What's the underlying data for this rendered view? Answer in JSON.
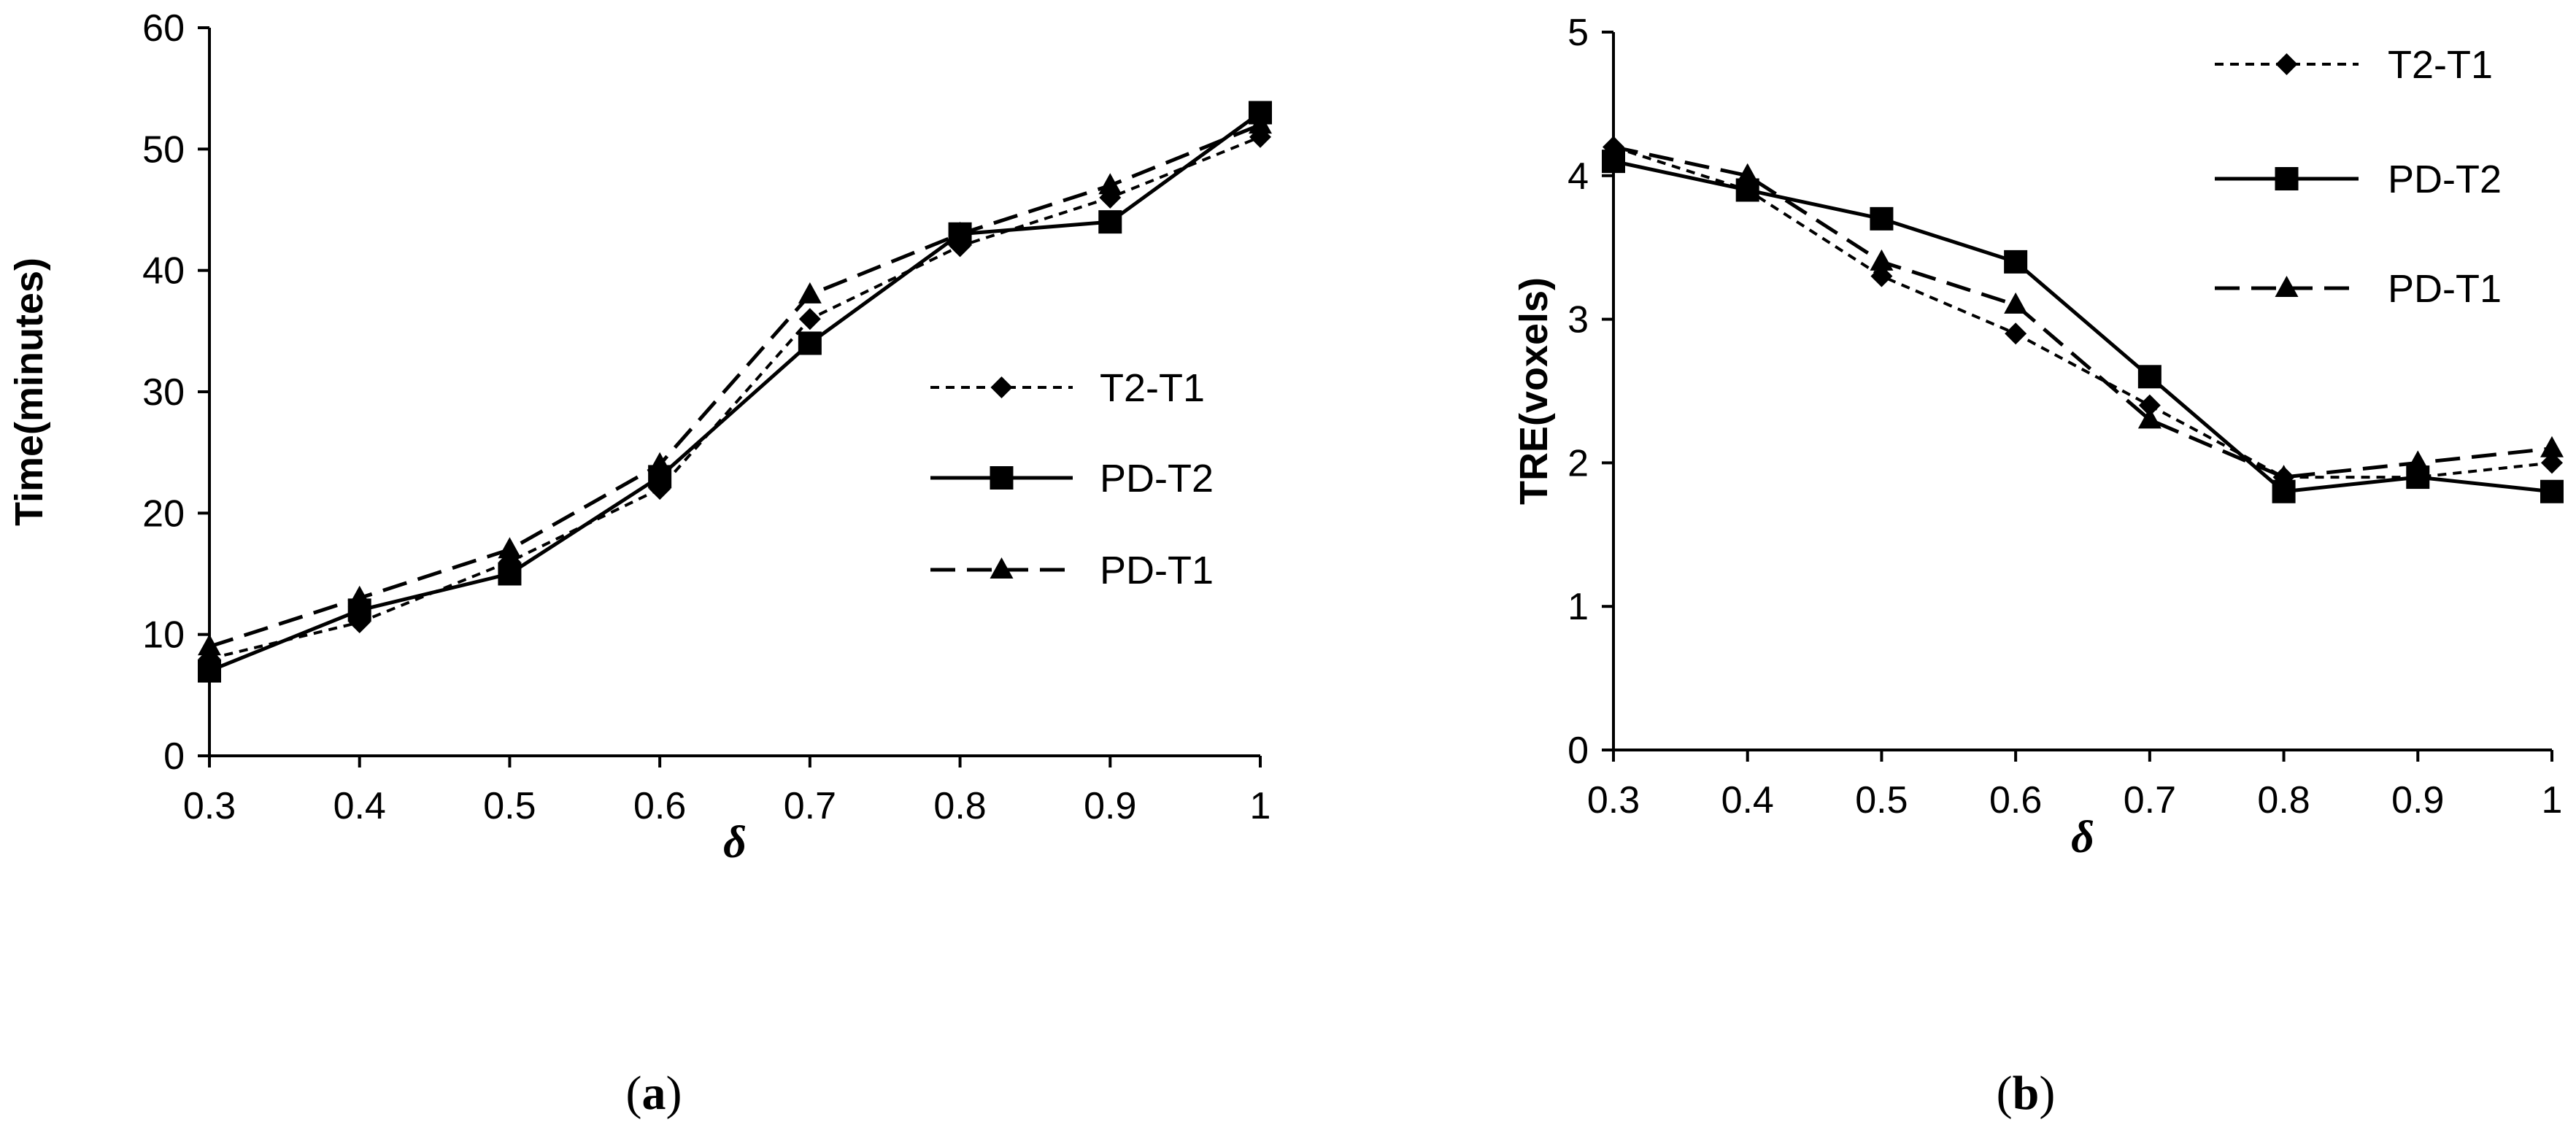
{
  "figure": {
    "captions": [
      {
        "open": "(",
        "letter": "a",
        "close": ")"
      },
      {
        "open": "(",
        "letter": "b",
        "close": ")"
      }
    ]
  },
  "chart_data": [
    {
      "type": "line",
      "panel": "a",
      "title": "",
      "xlabel": "δ",
      "ylabel": "Time(minutes)",
      "categories": [
        "0.3",
        "0.4",
        "0.5",
        "0.6",
        "0.7",
        "0.8",
        "0.9",
        "1"
      ],
      "xlim": [
        0.3,
        1.0
      ],
      "ylim": [
        0,
        60
      ],
      "yticks": [
        0,
        10,
        20,
        30,
        40,
        50,
        60
      ],
      "ytick_labels": [
        "0",
        "10",
        "20",
        "30",
        "40",
        "50",
        "60"
      ],
      "legend_position": "right-middle",
      "grid": false,
      "series": [
        {
          "name": "T2-T1",
          "marker": "diamond",
          "dash": "short-dash",
          "x": [
            0.3,
            0.4,
            0.5,
            0.6,
            0.7,
            0.8,
            0.9,
            1.0
          ],
          "values": [
            8,
            11,
            16,
            22,
            36,
            42,
            46,
            51
          ]
        },
        {
          "name": "PD-T2",
          "marker": "square",
          "dash": "solid",
          "x": [
            0.3,
            0.4,
            0.5,
            0.6,
            0.7,
            0.8,
            0.9,
            1.0
          ],
          "values": [
            7,
            12,
            15,
            23,
            34,
            43,
            44,
            53
          ]
        },
        {
          "name": "PD-T1",
          "marker": "triangle",
          "dash": "long-dash",
          "x": [
            0.3,
            0.4,
            0.5,
            0.6,
            0.7,
            0.8,
            0.9,
            1.0
          ],
          "values": [
            9,
            13,
            17,
            24,
            38,
            43,
            47,
            52
          ]
        }
      ]
    },
    {
      "type": "line",
      "panel": "b",
      "title": "",
      "xlabel": "δ",
      "ylabel": "TRE(voxels)",
      "categories": [
        "0.3",
        "0.4",
        "0.5",
        "0.6",
        "0.7",
        "0.8",
        "0.9",
        "1"
      ],
      "xlim": [
        0.3,
        1.0
      ],
      "ylim": [
        0,
        5
      ],
      "yticks": [
        0,
        1,
        2,
        3,
        4,
        5
      ],
      "ytick_labels": [
        "0",
        "1",
        "2",
        "3",
        "4",
        "5"
      ],
      "legend_position": "top-right",
      "grid": false,
      "series": [
        {
          "name": "T2-T1",
          "marker": "diamond",
          "dash": "short-dash",
          "x": [
            0.3,
            0.4,
            0.5,
            0.6,
            0.7,
            0.8,
            0.9,
            1.0
          ],
          "values": [
            4.2,
            3.9,
            3.3,
            2.9,
            2.4,
            1.9,
            1.9,
            2.0
          ]
        },
        {
          "name": "PD-T2",
          "marker": "square",
          "dash": "solid",
          "x": [
            0.3,
            0.4,
            0.5,
            0.6,
            0.7,
            0.8,
            0.9,
            1.0
          ],
          "values": [
            4.1,
            3.9,
            3.7,
            3.4,
            2.6,
            1.8,
            1.9,
            1.8
          ]
        },
        {
          "name": "PD-T1",
          "marker": "triangle",
          "dash": "long-dash",
          "x": [
            0.3,
            0.4,
            0.5,
            0.6,
            0.7,
            0.8,
            0.9,
            1.0
          ],
          "values": [
            4.2,
            4.0,
            3.4,
            3.1,
            2.3,
            1.9,
            2.0,
            2.1
          ]
        }
      ]
    }
  ]
}
